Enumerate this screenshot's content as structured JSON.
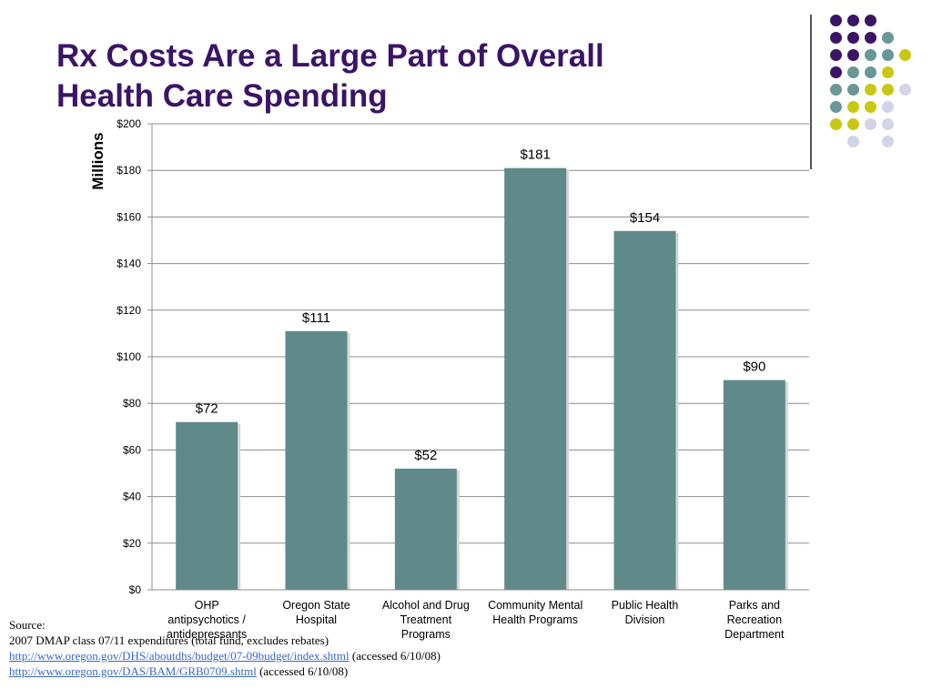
{
  "slide": {
    "title_line1": "Rx Costs Are a Large Part of Overall",
    "title_line2": "Health Care Spending"
  },
  "source": {
    "label": "Source:",
    "line1": "2007 DMAP class 07/11 expenditures (total fund, excludes rebates)",
    "link1": "http://www.oregon.gov/DHS/aboutdhs/budget/07-09budget/index.shtml",
    "link1_note": "(accessed 6/10/08)",
    "link2": "http://www.oregon.gov/DAS/BAM/GRB0709.shtml",
    "link2_note": "(accessed 6/10/08)"
  },
  "decoration": {
    "colors": {
      "purple": "#3b1466",
      "teal": "#6a9696",
      "yellow": "#c8c814",
      "lavender": "#d4d4e8"
    },
    "dot_rows": [
      [
        "purple",
        "purple",
        "purple",
        "",
        ""
      ],
      [
        "purple",
        "purple",
        "purple",
        "teal",
        ""
      ],
      [
        "purple",
        "purple",
        "teal",
        "teal",
        "yellow"
      ],
      [
        "purple",
        "teal",
        "teal",
        "yellow",
        ""
      ],
      [
        "teal",
        "teal",
        "yellow",
        "yellow",
        "lavender"
      ],
      [
        "teal",
        "yellow",
        "yellow",
        "lavender",
        ""
      ],
      [
        "yellow",
        "yellow",
        "lavender",
        "lavender",
        ""
      ],
      [
        "",
        "lavender",
        "",
        "lavender",
        ""
      ]
    ]
  },
  "chart_data": {
    "type": "bar",
    "title": "",
    "xlabel": "",
    "ylabel": "Millions",
    "ylim": [
      0,
      200
    ],
    "yticks": [
      0,
      20,
      40,
      60,
      80,
      100,
      120,
      140,
      160,
      180,
      200
    ],
    "ytick_labels": [
      "$0",
      "$20",
      "$40",
      "$60",
      "$80",
      "$100",
      "$120",
      "$140",
      "$160",
      "$180",
      "$200"
    ],
    "grid": true,
    "bar_color": "#5f8a89",
    "categories": [
      [
        "OHP",
        "antipsychotics /",
        "antidepressants"
      ],
      [
        "Oregon State",
        "Hospital"
      ],
      [
        "Alcohol and Drug",
        "Treatment",
        "Programs"
      ],
      [
        "Community Mental",
        "Health Programs"
      ],
      [
        "Public Health",
        "Division"
      ],
      [
        "Parks and",
        "Recreation",
        "Department"
      ]
    ],
    "values": [
      72,
      111,
      52,
      181,
      154,
      90
    ],
    "data_labels": [
      "$72",
      "$111",
      "$52",
      "$181",
      "$154",
      "$90"
    ]
  }
}
